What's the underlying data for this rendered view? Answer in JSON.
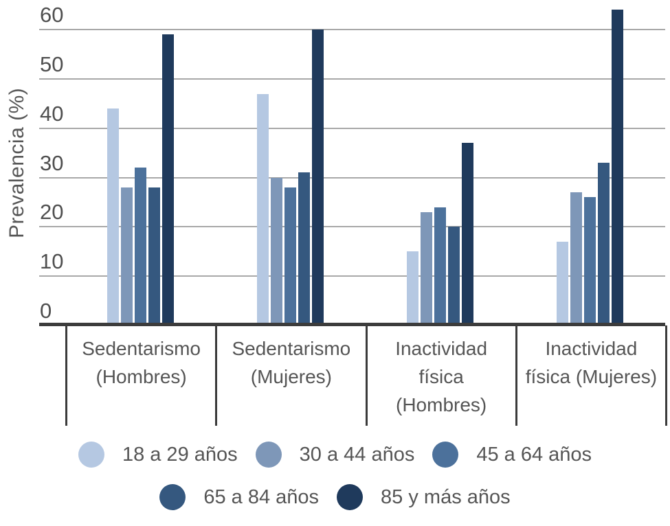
{
  "chart_data": {
    "type": "bar",
    "title": "",
    "xlabel": "",
    "ylabel": "Prevalencia (%)",
    "ylim": [
      0,
      60
    ],
    "yticks": [
      0,
      10,
      20,
      30,
      40,
      50,
      60
    ],
    "grid": true,
    "legend_position": "bottom",
    "categories": [
      "Sedentarismo (Hombres)",
      "Sedentarismo (Mujeres)",
      "Inactividad física (Hombres)",
      "Inactividad física (Mujeres)"
    ],
    "category_labels": [
      "Sedentarismo\n(Hombres)",
      "Sedentarismo\n(Mujeres)",
      "Inactividad\nfísica\n(Hombres)",
      "Inactividad\nfísica (Mujeres)"
    ],
    "series": [
      {
        "name": "18 a 29 años",
        "color": "#b5c8e2",
        "values": [
          44,
          47,
          15,
          17
        ]
      },
      {
        "name": "30 a 44 años",
        "color": "#7e97b8",
        "values": [
          28,
          30,
          23,
          27
        ]
      },
      {
        "name": "45 a 64 años",
        "color": "#4c719b",
        "values": [
          32,
          28,
          24,
          26
        ]
      },
      {
        "name": "65 a 84 años",
        "color": "#35587f",
        "values": [
          28,
          31,
          20,
          33
        ]
      },
      {
        "name": "85 y más años",
        "color": "#1f3a5c",
        "values": [
          59,
          60,
          37,
          64
        ]
      }
    ],
    "colors": {
      "gridline": "#a8a8a8",
      "axis": "#3c3c3c",
      "text": "#595959"
    }
  }
}
